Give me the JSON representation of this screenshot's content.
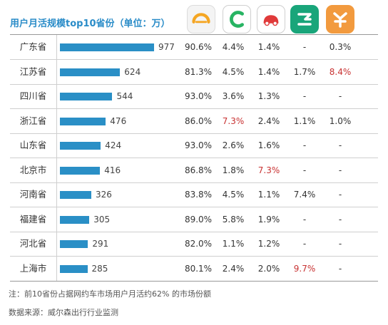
{
  "title": "用户月活规模top10省份（单位：万）",
  "logos": [
    "didi-logo",
    "caocao-logo",
    "shenzhou-logo",
    "yidao-logo",
    "shouqi-logo"
  ],
  "colors": {
    "bar": "#2a8fc6",
    "title": "#2a8cc8",
    "highlight": "#c83232"
  },
  "chart_data": {
    "type": "bar",
    "title": "用户月活规模top10省份（单位：万）",
    "orientation": "horizontal",
    "categories": [
      "广东省",
      "江苏省",
      "四川省",
      "浙江省",
      "山东省",
      "北京市",
      "河南省",
      "福建省",
      "河北省",
      "上海市"
    ],
    "values": [
      977,
      624,
      544,
      476,
      424,
      416,
      326,
      305,
      291,
      285
    ],
    "xlim": [
      0,
      977
    ],
    "share_columns": [
      "didi",
      "caocao",
      "shenzhou",
      "yidao",
      "shouqi"
    ],
    "shares": [
      [
        "90.6%",
        "4.4%",
        "1.4%",
        "-",
        "0.3%"
      ],
      [
        "81.3%",
        "4.5%",
        "1.4%",
        "1.7%",
        "8.4%"
      ],
      [
        "93.0%",
        "3.6%",
        "1.3%",
        "-",
        "-"
      ],
      [
        "86.0%",
        "7.3%",
        "2.4%",
        "1.1%",
        "1.0%"
      ],
      [
        "93.0%",
        "2.6%",
        "1.6%",
        "-",
        "-"
      ],
      [
        "86.8%",
        "1.8%",
        "7.3%",
        "-",
        "-"
      ],
      [
        "83.8%",
        "4.5%",
        "1.1%",
        "7.4%",
        "-"
      ],
      [
        "89.0%",
        "5.8%",
        "1.9%",
        "-",
        "-"
      ],
      [
        "82.0%",
        "1.1%",
        "1.2%",
        "-",
        "-"
      ],
      [
        "80.1%",
        "2.4%",
        "2.0%",
        "9.7%",
        "-"
      ]
    ],
    "highlighted": [
      {
        "row": 1,
        "col": 4
      },
      {
        "row": 3,
        "col": 1
      },
      {
        "row": 5,
        "col": 2
      },
      {
        "row": 9,
        "col": 3
      }
    ]
  },
  "note": "注：前10省份占据网约车市场用户月活约62% 的市场份额",
  "source": "数据来源：威尔森出行行业监测"
}
